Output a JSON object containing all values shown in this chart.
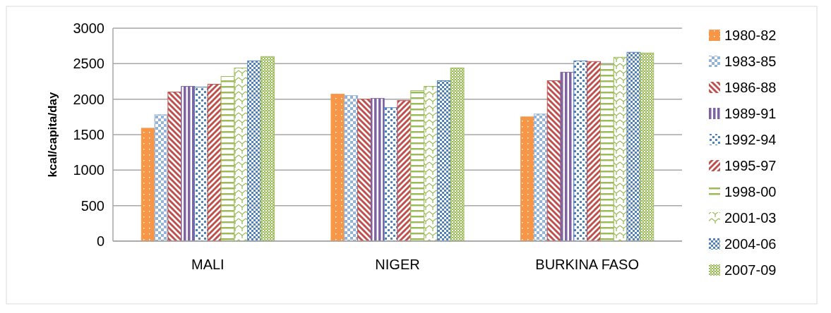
{
  "chart_data": {
    "type": "bar",
    "ylabel": "kcal/capita/day",
    "categories": [
      "MALI",
      "NIGER",
      "BURKINA FASO"
    ],
    "ylim": [
      0,
      3000
    ],
    "yticks": [
      0,
      500,
      1000,
      1500,
      2000,
      2500,
      3000
    ],
    "grid": "y",
    "legend": "right",
    "series": [
      {
        "name": "1980-82",
        "color": "#f79646",
        "values": [
          1590,
          2070,
          1750
        ]
      },
      {
        "name": "1983-85",
        "color": "#95b3d7",
        "values": [
          1780,
          2050,
          1790
        ]
      },
      {
        "name": "1986-88",
        "color": "#c0504d",
        "values": [
          2100,
          2000,
          2260
        ]
      },
      {
        "name": "1989-91",
        "color": "#8064a2",
        "values": [
          2180,
          2010,
          2380
        ]
      },
      {
        "name": "1992-94",
        "color": "#4f81bd",
        "values": [
          2170,
          1880,
          2540
        ]
      },
      {
        "name": "1995-97",
        "color": "#c0504d",
        "values": [
          2210,
          1980,
          2530
        ]
      },
      {
        "name": "1998-00",
        "color": "#9bbb59",
        "values": [
          2320,
          2120,
          2490
        ]
      },
      {
        "name": "2001-03",
        "color": "#9bbb59",
        "values": [
          2440,
          2180,
          2590
        ]
      },
      {
        "name": "2004-06",
        "color": "#4f81bd",
        "values": [
          2540,
          2260,
          2660
        ]
      },
      {
        "name": "2007-09",
        "color": "#9bbb59",
        "values": [
          2600,
          2440,
          2650
        ]
      }
    ]
  }
}
